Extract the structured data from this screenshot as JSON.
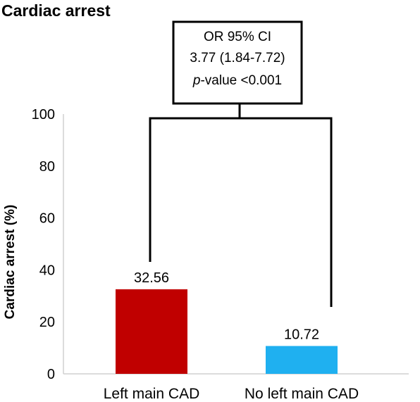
{
  "chart_data": {
    "type": "bar",
    "title": "Cardiac arrest",
    "ylabel": "Cardiac arrest (%)",
    "xlabel": "",
    "categories": [
      "Left main CAD",
      "No left main CAD"
    ],
    "values": [
      32.56,
      10.72
    ],
    "data_labels": [
      "32.56",
      "10.72"
    ],
    "colors": [
      "#c00000",
      "#1fb0f0"
    ],
    "ylim": [
      0,
      100
    ],
    "yticks": [
      0,
      20,
      40,
      60,
      80,
      100
    ],
    "grid": false,
    "legend": "none",
    "annotation": {
      "line1": "OR 95% CI",
      "line2": "3.77 (1.84-7.72)",
      "line3_italic": "p",
      "line3_rest": "-value <0.001"
    }
  }
}
